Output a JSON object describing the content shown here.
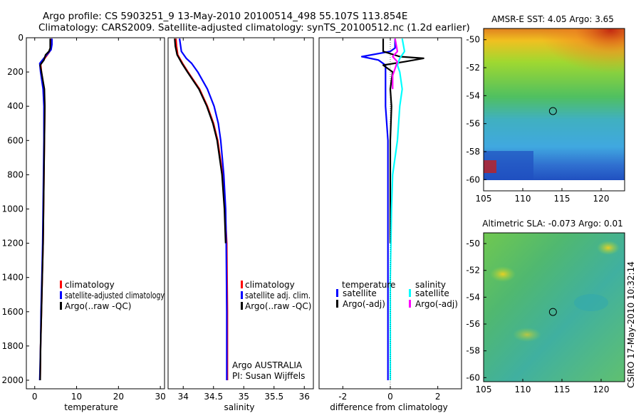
{
  "header": {
    "line1": "Argo profile: CS 5903251_9 13-May-2010 20100514_498 55.107S 113.854E",
    "line2": "Climatology: CARS2009. Satellite-adjusted climatology: synTS_20100512.nc (1.2d earlier)"
  },
  "colors": {
    "red": "#ff0000",
    "blue": "#0000ff",
    "black": "#000000",
    "cyan": "#00ffff",
    "magenta": "#ff00ff"
  },
  "credit": "CSIRO 17-May-2010 10:32:14",
  "chart_data": [
    {
      "type": "line",
      "id": "temperature",
      "xlabel": "temperature",
      "xlim": [
        -2,
        31
      ],
      "ylim": [
        0,
        2050
      ],
      "x_ticks": [
        "0",
        "10",
        "20",
        "30"
      ],
      "y_ticks": [
        "0",
        "200",
        "400",
        "600",
        "800",
        "1000",
        "1200",
        "1400",
        "1600",
        "1800",
        "2000"
      ],
      "legend": {
        "placement": "lower-right",
        "entries": [
          "climatology",
          "satellite-adjusted climatology",
          "Argo(..raw -QC)"
        ]
      },
      "series": [
        {
          "name": "climatology",
          "color": "red",
          "depth": [
            5,
            50,
            80,
            120,
            150,
            200,
            300,
            400,
            600,
            800,
            1000,
            1200,
            1400,
            1600,
            1800,
            2000
          ],
          "value": [
            3.9,
            3.9,
            3.6,
            2.4,
            1.4,
            1.6,
            2.2,
            2.4,
            2.3,
            2.2,
            2.1,
            2.0,
            1.8,
            1.6,
            1.4,
            1.3
          ]
        },
        {
          "name": "satellite-adjusted climatology",
          "color": "blue",
          "depth": [
            5,
            40,
            70,
            110,
            150,
            200,
            300,
            400,
            600,
            800,
            1000,
            1200,
            1400,
            1600,
            1800,
            2000
          ],
          "value": [
            4.1,
            4.1,
            3.9,
            2.5,
            1.2,
            1.4,
            2.0,
            2.2,
            2.2,
            2.1,
            2.0,
            1.9,
            1.7,
            1.5,
            1.4,
            1.2
          ]
        },
        {
          "name": "Argo(..raw -QC)",
          "color": "black",
          "depth": [
            5,
            60,
            80,
            100,
            130,
            160,
            200,
            300,
            400,
            600,
            800,
            1000,
            1200,
            1400,
            1600,
            1800,
            2000
          ],
          "value": [
            3.7,
            3.7,
            3.4,
            2.6,
            2.2,
            1.3,
            1.6,
            2.3,
            2.4,
            2.3,
            2.2,
            2.1,
            2.0,
            1.8,
            1.6,
            1.4,
            1.3
          ]
        }
      ]
    },
    {
      "type": "line",
      "id": "salinity",
      "xlabel": "salinity",
      "xlim": [
        33.75,
        36.15
      ],
      "ylim": [
        0,
        2050
      ],
      "x_ticks": [
        "34",
        "34.5",
        "35",
        "35.5",
        "36"
      ],
      "legend": {
        "placement": "lower-right",
        "entries": [
          "climatology",
          "satellite adj. clim.",
          "Argo(..raw -QC)"
        ]
      },
      "annotation": [
        "Argo AUSTRALIA",
        "PI: Susan Wijffels"
      ],
      "series": [
        {
          "name": "climatology",
          "color": "red",
          "depth": [
            5,
            50,
            100,
            150,
            200,
            300,
            400,
            500,
            600,
            800,
            1000,
            1200,
            1600,
            2000
          ],
          "value": [
            33.88,
            33.89,
            33.91,
            33.99,
            34.08,
            34.27,
            34.4,
            34.5,
            34.57,
            34.65,
            34.69,
            34.72,
            34.73,
            34.73
          ]
        },
        {
          "name": "satellite adj. clim.",
          "color": "blue",
          "depth": [
            5,
            80,
            120,
            150,
            200,
            300,
            400,
            500,
            600,
            800,
            1000,
            1200,
            1600,
            2000
          ],
          "value": [
            33.94,
            33.97,
            34.05,
            34.14,
            34.24,
            34.4,
            34.51,
            34.58,
            34.62,
            34.67,
            34.7,
            34.71,
            34.72,
            34.72
          ]
        },
        {
          "name": "Argo(..raw -QC)",
          "color": "black",
          "depth": [
            5,
            50,
            100,
            150,
            200,
            300,
            400,
            500,
            600,
            800,
            1000,
            1200
          ],
          "value": [
            33.86,
            33.87,
            33.9,
            33.98,
            34.07,
            34.26,
            34.39,
            34.49,
            34.56,
            34.64,
            34.68,
            34.7
          ]
        }
      ]
    },
    {
      "type": "line",
      "id": "difference",
      "xlabel": "difference from climatology",
      "xlim": [
        -3.0,
        3.0
      ],
      "ylim": [
        0,
        2050
      ],
      "x_ticks": [
        "-2",
        "0",
        "2"
      ],
      "legend": {
        "placement": "lower",
        "temperature_title": "temperature",
        "salinity_title": "salinity",
        "temperature_entries": [
          "satellite",
          "Argo(-adj)"
        ],
        "salinity_entries": [
          "satellite",
          "Argo(-adj)"
        ]
      },
      "series": [
        {
          "name": "temperature satellite",
          "color": "blue",
          "depth": [
            5,
            60,
            80,
            110,
            130,
            160,
            200,
            300,
            400,
            600,
            800,
            1000,
            1400,
            1800,
            2000
          ],
          "value": [
            0.2,
            0.2,
            0.0,
            -1.2,
            -0.5,
            -0.2,
            -0.2,
            -0.2,
            -0.2,
            -0.1,
            -0.1,
            -0.1,
            -0.1,
            -0.1,
            -0.1
          ]
        },
        {
          "name": "temperature Argo(-adj)",
          "color": "black",
          "depth": [
            5,
            80,
            110,
            120,
            140,
            160,
            200,
            300,
            400,
            600,
            800,
            1000,
            1200
          ],
          "value": [
            -0.3,
            -0.3,
            0.4,
            1.4,
            0.6,
            -0.3,
            0.1,
            0.0,
            0.05,
            0.0,
            0.0,
            0.0,
            0.0
          ]
        },
        {
          "name": "salinity satellite",
          "color": "cyan",
          "depth": [
            5,
            80,
            120,
            160,
            200,
            300,
            400,
            600,
            800,
            1000,
            1400,
            1800,
            2000
          ],
          "value": [
            0.5,
            0.6,
            0.4,
            0.3,
            0.4,
            0.5,
            0.4,
            0.3,
            0.1,
            0.05,
            0.0,
            0.0,
            0.0
          ]
        },
        {
          "name": "salinity Argo(-adj)",
          "color": "magenta",
          "depth": [
            5,
            80,
            110,
            140,
            180,
            220,
            300
          ],
          "value": [
            0.2,
            0.3,
            0.1,
            0.3,
            0.2,
            0.1,
            0.1
          ]
        }
      ]
    },
    {
      "type": "heatmap",
      "id": "sst",
      "title": "AMSR-E SST: 4.05 Argo: 3.65",
      "xlim": [
        105,
        123
      ],
      "ylim": [
        -60.8,
        -49.2
      ],
      "x_ticks": [
        "105",
        "110",
        "115",
        "120"
      ],
      "y_ticks": [
        "-50",
        "-52",
        "-54",
        "-56",
        "-58",
        "-60"
      ],
      "marker": {
        "lon": 113.85,
        "lat": -55.1
      },
      "gradient_stops": [
        "#d03010",
        "#f0a020",
        "#e0e020",
        "#80d040",
        "#40c080",
        "#40b0e0",
        "#2060d0"
      ]
    },
    {
      "type": "heatmap",
      "id": "sla",
      "title": "Altimetric SLA: -0.073 Argo: 0.01",
      "xlim": [
        105,
        123
      ],
      "ylim": [
        -60.3,
        -49.2
      ],
      "x_ticks": [
        "105",
        "110",
        "115",
        "120"
      ],
      "y_ticks": [
        "-50",
        "-52",
        "-54",
        "-56",
        "-58",
        "-60"
      ],
      "marker": {
        "lon": 113.85,
        "lat": -55.1
      },
      "gradient_stops": [
        "#f0d020",
        "#a0d840",
        "#60c060",
        "#40b898",
        "#30a8b0"
      ]
    }
  ]
}
